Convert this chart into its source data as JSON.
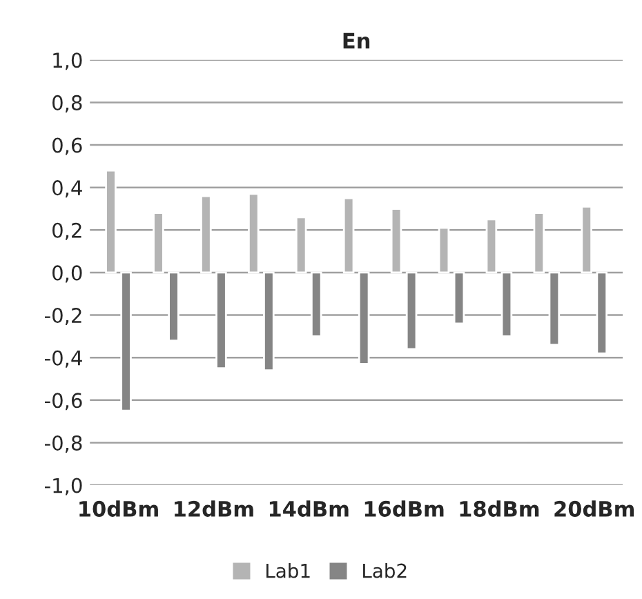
{
  "chart_data": {
    "type": "bar",
    "title": "En",
    "categories": [
      "10dBm",
      null,
      "12dBm",
      null,
      "14dBm",
      null,
      "16dBm",
      null,
      "18dBm",
      null,
      "20dBm"
    ],
    "series": [
      {
        "name": "Lab1",
        "color": "#b4b4b4",
        "values": [
          0.48,
          0.28,
          0.36,
          0.37,
          0.26,
          0.35,
          0.3,
          0.21,
          0.25,
          0.28,
          0.31
        ]
      },
      {
        "name": "Lab2",
        "color": "#858585",
        "values": [
          -0.65,
          -0.32,
          -0.45,
          -0.46,
          -0.3,
          -0.43,
          -0.36,
          -0.24,
          -0.3,
          -0.34,
          -0.38
        ]
      }
    ],
    "ylim": [
      -1.0,
      1.0
    ],
    "yticks": [
      {
        "value": -1.0,
        "label": "-1,0"
      },
      {
        "value": -0.8,
        "label": "-0,8"
      },
      {
        "value": -0.6,
        "label": "-0,6"
      },
      {
        "value": -0.4,
        "label": "-0,4"
      },
      {
        "value": -0.2,
        "label": "-0,2"
      },
      {
        "value": 0,
        "label": "0,0"
      },
      {
        "value": 0.2,
        "label": "0,2"
      },
      {
        "value": 0.4,
        "label": "0,4"
      },
      {
        "value": 0.6,
        "label": "0,6"
      },
      {
        "value": 0.8,
        "label": "0,8"
      },
      {
        "value": 1.0,
        "label": "1,0"
      }
    ],
    "grid": "y",
    "legend": "bottom"
  }
}
